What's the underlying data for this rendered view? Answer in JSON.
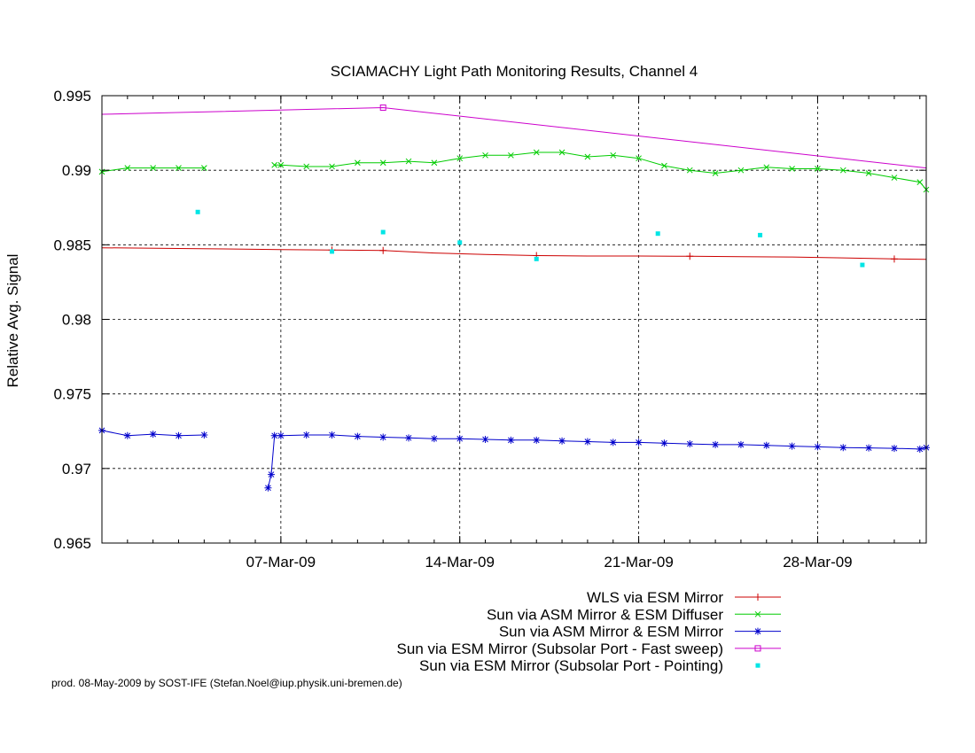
{
  "chart_data": {
    "type": "line",
    "title": "SCIAMACHY Light Path Monitoring Results, Channel 4",
    "ylabel": "Relative Avg. Signal",
    "xlabel": "",
    "ylim": [
      0.965,
      0.995
    ],
    "xlim": [
      "2009-02-28T00:00",
      "2009-04-01T06:00"
    ],
    "x_ticks": [
      {
        "date": "2009-03-07",
        "label": "07-Mar-09"
      },
      {
        "date": "2009-03-14",
        "label": "14-Mar-09"
      },
      {
        "date": "2009-03-21",
        "label": "21-Mar-09"
      },
      {
        "date": "2009-03-28",
        "label": "28-Mar-09"
      }
    ],
    "y_ticks": [
      {
        "value": 0.965,
        "label": "0.965"
      },
      {
        "value": 0.97,
        "label": "0.97"
      },
      {
        "value": 0.975,
        "label": "0.975"
      },
      {
        "value": 0.98,
        "label": "0.98"
      },
      {
        "value": 0.985,
        "label": "0.985"
      },
      {
        "value": 0.99,
        "label": "0.99"
      },
      {
        "value": 0.995,
        "label": "0.995"
      }
    ],
    "grid": true,
    "legend_position": "bottom-right, below plot",
    "series": [
      {
        "name": "WLS via ESM Mirror",
        "color": "#cc0000",
        "marker": "plus",
        "style": "line",
        "points": [
          [
            "2009-02-28T00:00",
            0.9848
          ],
          [
            "2009-03-03T00:00",
            0.98475
          ],
          [
            "2009-03-07T00:00",
            0.98468
          ],
          [
            "2009-03-09T00:00",
            0.98465
          ],
          [
            "2009-03-11T00:00",
            0.98462
          ],
          [
            "2009-03-13T00:00",
            0.98445
          ],
          [
            "2009-03-15T00:00",
            0.98435
          ],
          [
            "2009-03-17T00:00",
            0.98428
          ],
          [
            "2009-03-19T00:00",
            0.98425
          ],
          [
            "2009-03-21T00:00",
            0.98425
          ],
          [
            "2009-03-23T00:00",
            0.98423
          ],
          [
            "2009-03-25T00:00",
            0.9842
          ],
          [
            "2009-03-27T00:00",
            0.98418
          ],
          [
            "2009-03-29T00:00",
            0.98412
          ],
          [
            "2009-03-31T00:00",
            0.98405
          ],
          [
            "2009-04-01T06:00",
            0.98402
          ]
        ],
        "marker_dates": [
          "2009-03-09T00:00",
          "2009-03-11T00:00",
          "2009-03-17T00:00",
          "2009-03-23T00:00",
          "2009-03-31T00:00"
        ]
      },
      {
        "name": "Sun via ASM Mirror & ESM Diffuser",
        "color": "#00cc00",
        "marker": "x",
        "style": "line",
        "segments": [
          [
            [
              "2009-02-28T00:00",
              0.9899
            ],
            [
              "2009-03-01T00:00",
              0.99015
            ],
            [
              "2009-03-02T00:00",
              0.99015
            ],
            [
              "2009-03-03T00:00",
              0.99015
            ],
            [
              "2009-03-04T00:00",
              0.99015
            ]
          ],
          [
            [
              "2009-03-06T18:00",
              0.99035
            ],
            [
              "2009-03-07T00:00",
              0.99035
            ],
            [
              "2009-03-08T00:00",
              0.99025
            ],
            [
              "2009-03-09T00:00",
              0.99025
            ],
            [
              "2009-03-10T00:00",
              0.9905
            ],
            [
              "2009-03-11T00:00",
              0.9905
            ],
            [
              "2009-03-12T00:00",
              0.9906
            ],
            [
              "2009-03-13T00:00",
              0.9905
            ],
            [
              "2009-03-14T00:00",
              0.9908
            ],
            [
              "2009-03-15T00:00",
              0.991
            ],
            [
              "2009-03-16T00:00",
              0.991
            ],
            [
              "2009-03-17T00:00",
              0.9912
            ],
            [
              "2009-03-18T00:00",
              0.9912
            ],
            [
              "2009-03-19T00:00",
              0.9909
            ],
            [
              "2009-03-20T00:00",
              0.991
            ],
            [
              "2009-03-21T00:00",
              0.9908
            ],
            [
              "2009-03-22T00:00",
              0.9903
            ],
            [
              "2009-03-23T00:00",
              0.99
            ],
            [
              "2009-03-24T00:00",
              0.9898
            ],
            [
              "2009-03-25T00:00",
              0.99
            ],
            [
              "2009-03-26T00:00",
              0.9902
            ],
            [
              "2009-03-27T00:00",
              0.9901
            ],
            [
              "2009-03-28T00:00",
              0.9901
            ],
            [
              "2009-03-29T00:00",
              0.99
            ],
            [
              "2009-03-30T00:00",
              0.9898
            ],
            [
              "2009-03-31T00:00",
              0.9895
            ],
            [
              "2009-04-01T00:00",
              0.9892
            ],
            [
              "2009-04-01T06:00",
              0.9887
            ]
          ]
        ]
      },
      {
        "name": "Sun via ASM Mirror & ESM Mirror",
        "color": "#0000cc",
        "marker": "star",
        "style": "line",
        "segments": [
          [
            [
              "2009-02-28T00:00",
              0.97255
            ],
            [
              "2009-03-01T00:00",
              0.9722
            ],
            [
              "2009-03-02T00:00",
              0.9723
            ],
            [
              "2009-03-03T00:00",
              0.9722
            ],
            [
              "2009-03-04T00:00",
              0.97225
            ]
          ],
          [
            [
              "2009-03-06T12:00",
              0.9687
            ],
            [
              "2009-03-06T15:00",
              0.9696
            ],
            [
              "2009-03-06T18:00",
              0.9722
            ],
            [
              "2009-03-07T00:00",
              0.9722
            ],
            [
              "2009-03-08T00:00",
              0.97225
            ],
            [
              "2009-03-09T00:00",
              0.97225
            ],
            [
              "2009-03-10T00:00",
              0.97215
            ],
            [
              "2009-03-11T00:00",
              0.9721
            ],
            [
              "2009-03-12T00:00",
              0.97205
            ],
            [
              "2009-03-13T00:00",
              0.972
            ],
            [
              "2009-03-14T00:00",
              0.972
            ],
            [
              "2009-03-15T00:00",
              0.97195
            ],
            [
              "2009-03-16T00:00",
              0.9719
            ],
            [
              "2009-03-17T00:00",
              0.9719
            ],
            [
              "2009-03-18T00:00",
              0.97185
            ],
            [
              "2009-03-19T00:00",
              0.9718
            ],
            [
              "2009-03-20T00:00",
              0.97175
            ],
            [
              "2009-03-21T00:00",
              0.97175
            ],
            [
              "2009-03-22T00:00",
              0.9717
            ],
            [
              "2009-03-23T00:00",
              0.97165
            ],
            [
              "2009-03-24T00:00",
              0.9716
            ],
            [
              "2009-03-25T00:00",
              0.9716
            ],
            [
              "2009-03-26T00:00",
              0.97155
            ],
            [
              "2009-03-27T00:00",
              0.9715
            ],
            [
              "2009-03-28T00:00",
              0.97145
            ],
            [
              "2009-03-29T00:00",
              0.9714
            ],
            [
              "2009-03-30T00:00",
              0.97138
            ],
            [
              "2009-03-31T00:00",
              0.97135
            ],
            [
              "2009-04-01T00:00",
              0.9713
            ],
            [
              "2009-04-01T06:00",
              0.9714
            ]
          ]
        ]
      },
      {
        "name": "Sun via ESM Mirror (Subsolar Port - Fast sweep)",
        "color": "#cc00cc",
        "marker": "square",
        "style": "line",
        "points": [
          [
            "2009-02-28T00:00",
            0.99375
          ],
          [
            "2009-03-11T00:00",
            0.9942
          ],
          [
            "2009-04-01T06:00",
            0.99015
          ]
        ],
        "marker_dates": [
          "2009-03-11T00:00"
        ]
      },
      {
        "name": "Sun via ESM Mirror (Subsolar Port - Pointing)",
        "color": "#00e5e5",
        "marker": "dot",
        "style": "points",
        "points": [
          [
            "2009-03-03T18:00",
            0.9872
          ],
          [
            "2009-03-09T00:00",
            0.98455
          ],
          [
            "2009-03-11T00:00",
            0.98585
          ],
          [
            "2009-03-14T00:00",
            0.98515
          ],
          [
            "2009-03-17T00:00",
            0.98405
          ],
          [
            "2009-03-21T18:00",
            0.98575
          ],
          [
            "2009-03-25T18:00",
            0.98565
          ],
          [
            "2009-03-29T18:00",
            0.98365
          ]
        ]
      }
    ]
  },
  "footer": {
    "text": "prod. 08-May-2009 by SOST-IFE (Stefan.Noel@iup.physik.uni-bremen.de)"
  }
}
